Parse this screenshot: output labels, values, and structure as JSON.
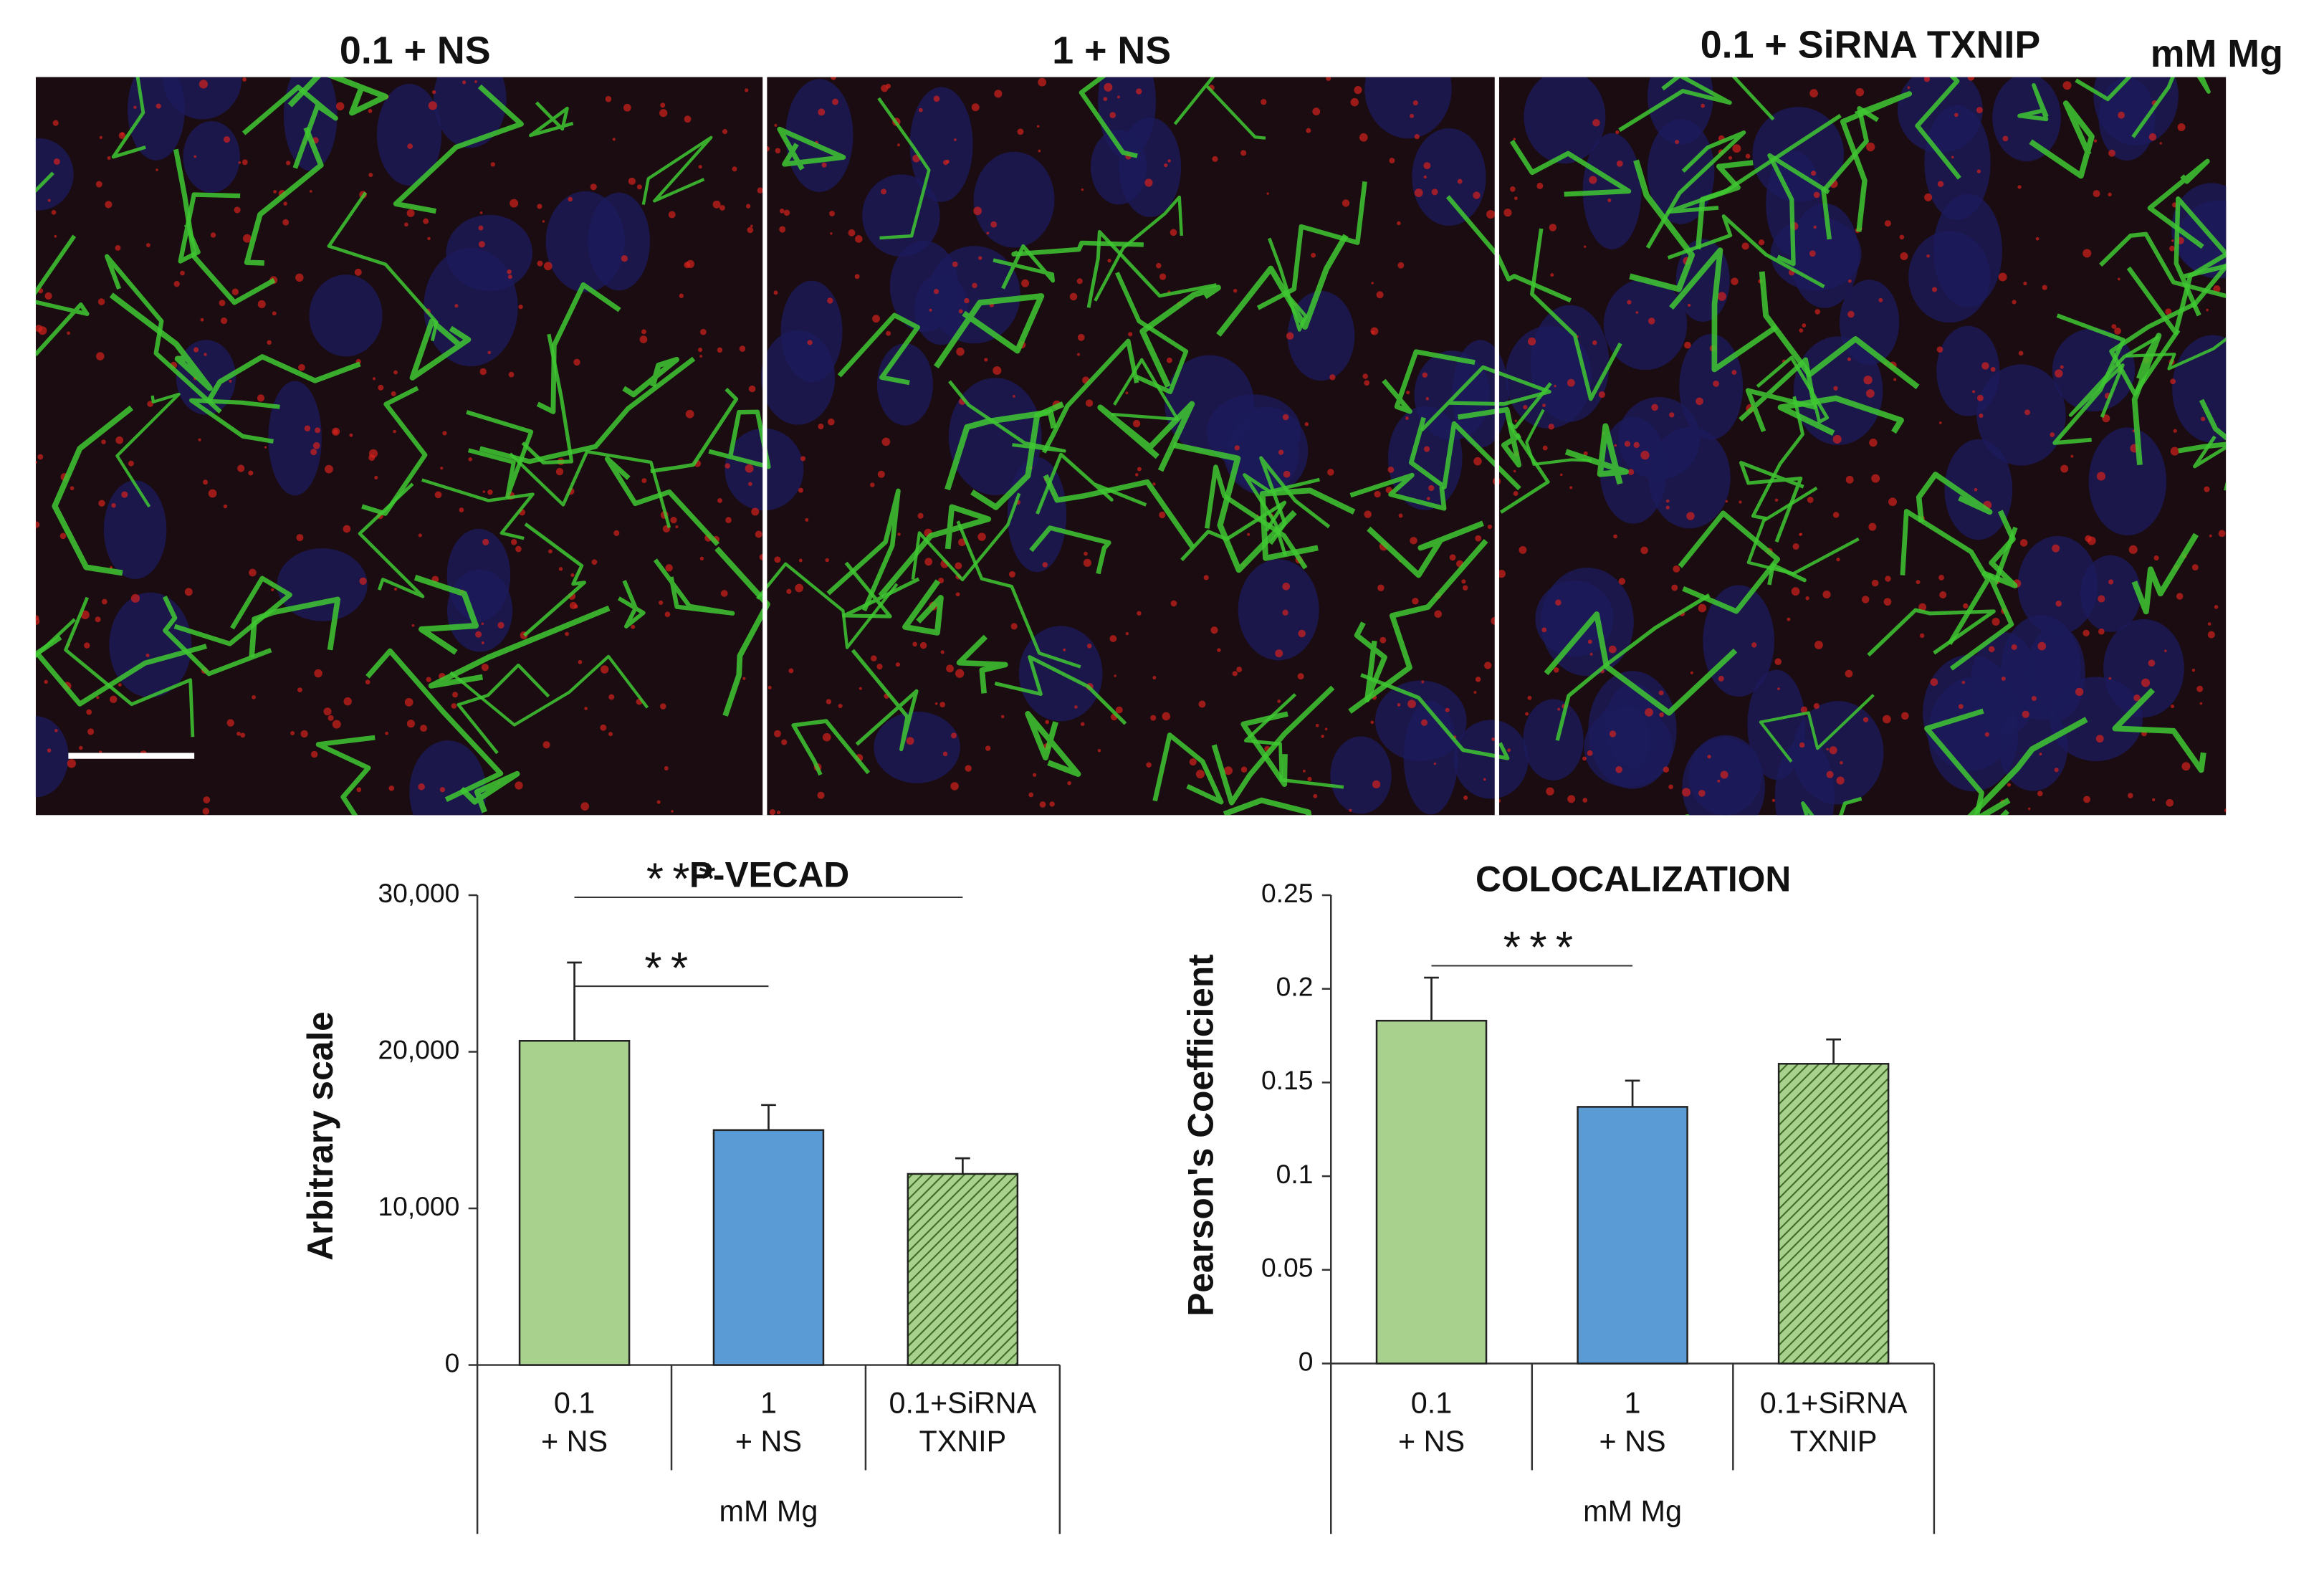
{
  "figure": {
    "panels": [
      "0.1 + NS",
      "1 + NS",
      "0.1 + SiRNA TXNIP"
    ],
    "unit_label": "mM Mg"
  },
  "chart_data": [
    {
      "type": "bar",
      "title": "P-VECAD",
      "y_label": "Arbitrary scale",
      "x_label": "mM Mg",
      "categories": [
        [
          "0.1",
          "+ NS"
        ],
        [
          "1",
          "+ NS"
        ],
        [
          "0.1+SiRNA",
          "TXNIP"
        ]
      ],
      "values": [
        20700,
        15000,
        12200
      ],
      "errors": [
        5000,
        1600,
        1000
      ],
      "colors": [
        "#a9d18e",
        "#5b9bd5",
        "#a9d18e"
      ],
      "hatched": [
        false,
        false,
        true
      ],
      "ylim": [
        0,
        30000
      ],
      "yticks": [
        0,
        {
          "value": 10000,
          "label": "10,000"
        },
        {
          "value": 20000,
          "label": "20,000"
        },
        {
          "value": 30000,
          "label": "30,000"
        }
      ],
      "annotations": [
        {
          "text": "**",
          "from": 0,
          "to": 1
        },
        {
          "text": "***",
          "from": 0,
          "to": 2
        }
      ]
    },
    {
      "type": "bar",
      "title": "COLOCALIZATION",
      "y_label": "Pearson's Coefficient",
      "x_label": "mM Mg",
      "categories": [
        [
          "0.1",
          "+ NS"
        ],
        [
          "1",
          "+ NS"
        ],
        [
          "0.1+SiRNA",
          "TXNIP"
        ]
      ],
      "values": [
        0.183,
        0.137,
        0.16
      ],
      "errors": [
        0.023,
        0.014,
        0.013
      ],
      "colors": [
        "#a9d18e",
        "#5b9bd5",
        "#a9d18e"
      ],
      "hatched": [
        false,
        false,
        true
      ],
      "ylim": [
        0,
        0.25
      ],
      "yticks": [
        0,
        0.05,
        0.1,
        0.15,
        0.2,
        0.25
      ],
      "annotations": [
        {
          "text": "***",
          "from": 0,
          "to": 1
        }
      ]
    }
  ]
}
